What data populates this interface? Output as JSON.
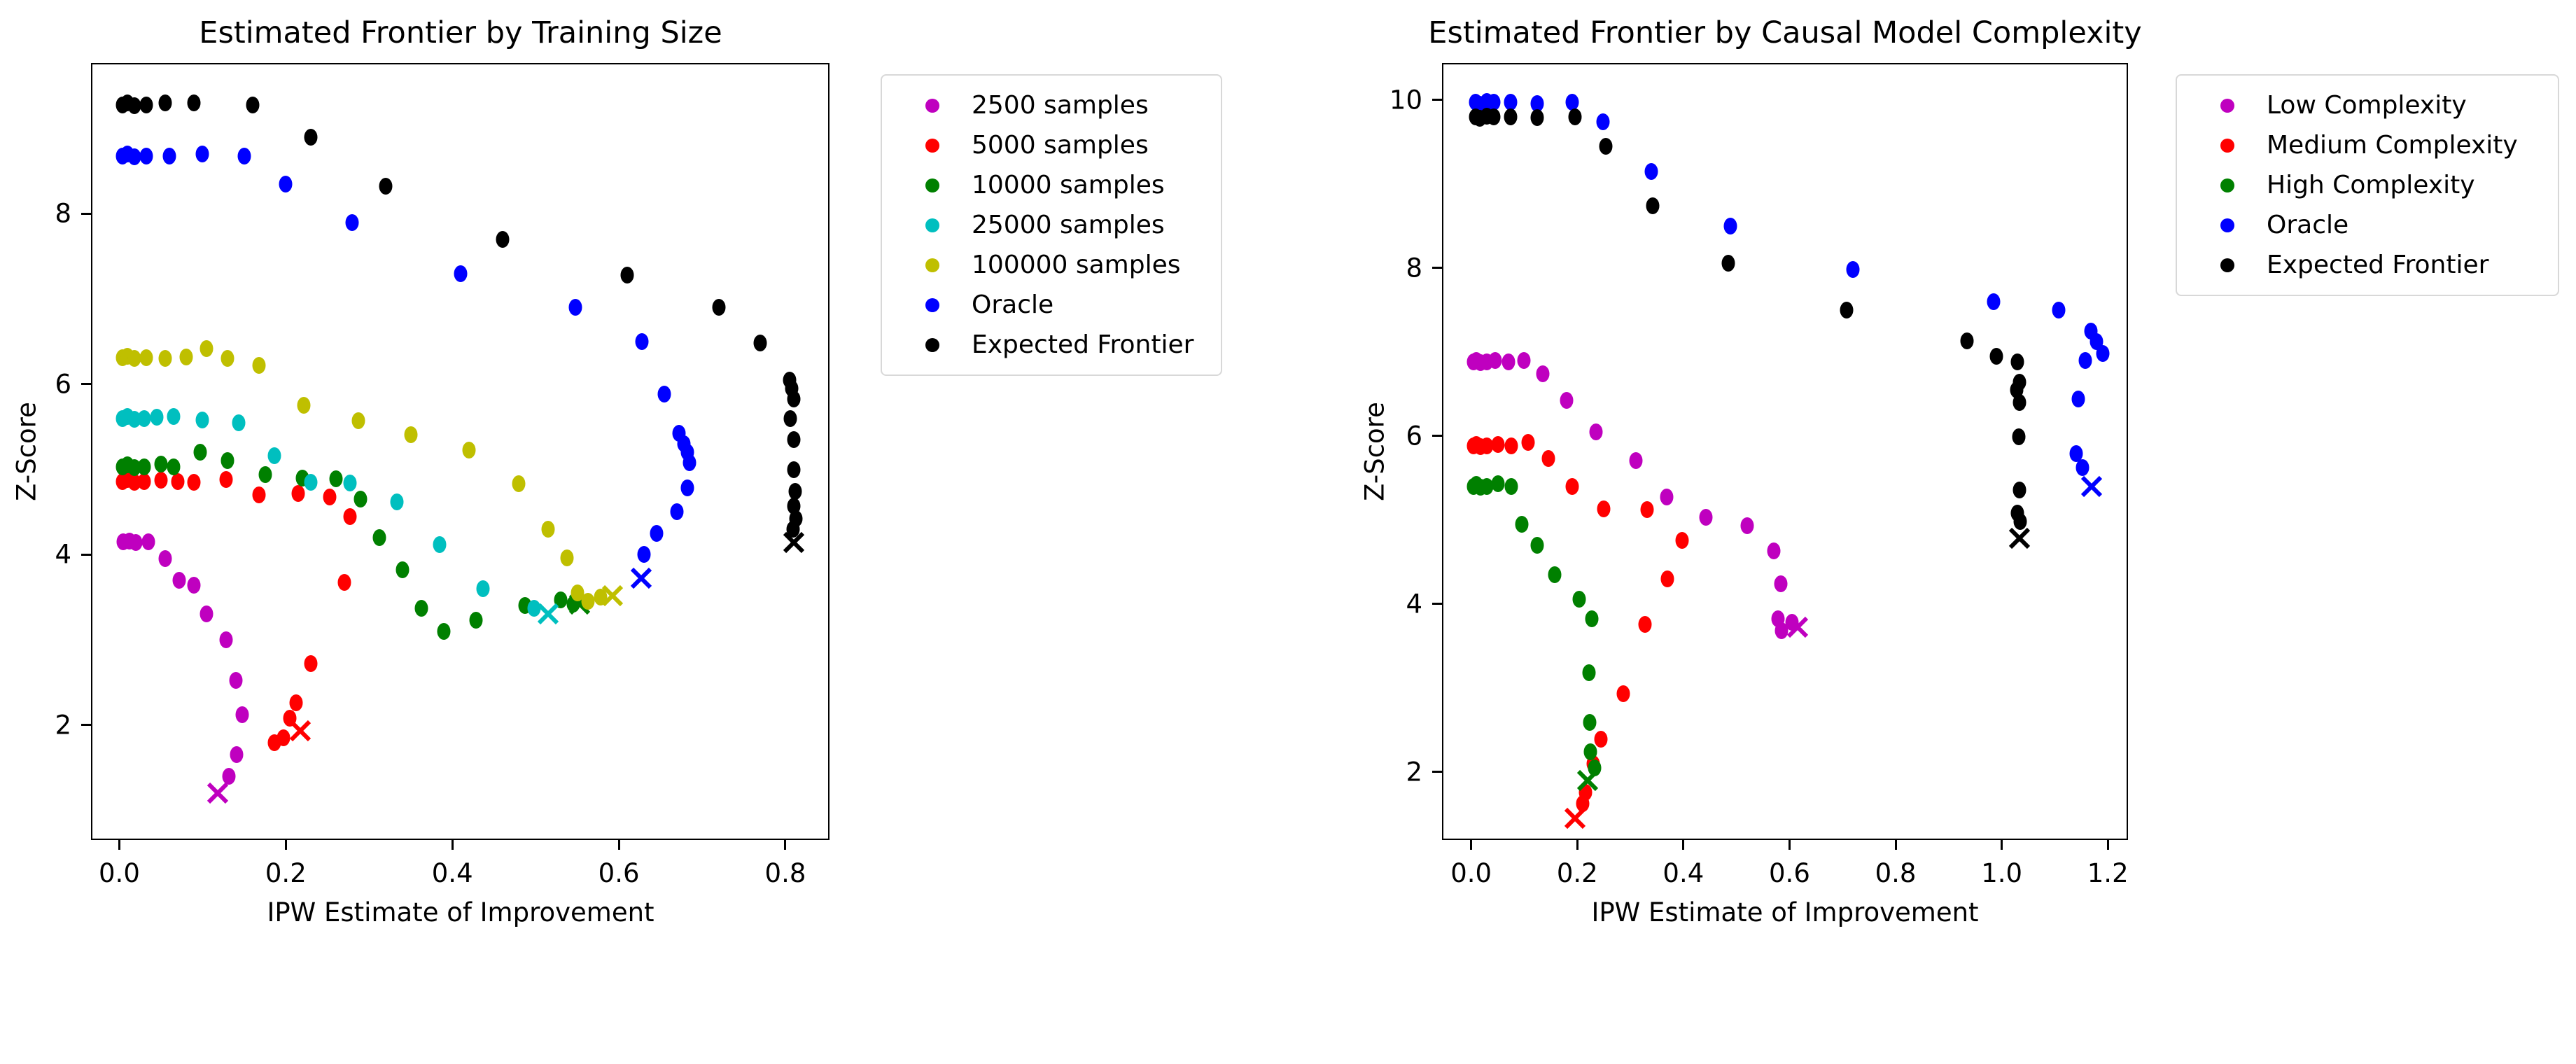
{
  "figure": {
    "background": "#ffffff",
    "spine_color": "#000000"
  },
  "chart_data": [
    {
      "type": "scatter",
      "title": "Estimated Frontier by Training Size",
      "xlabel": "IPW Estimate of Improvement",
      "ylabel": "Z-Score",
      "xlim": [
        -0.034,
        0.853
      ],
      "ylim": [
        0.65,
        9.77
      ],
      "grid": false,
      "legend_position": "outside upper right",
      "frontier_marker": "x",
      "xticks": [
        {
          "v": 0.0,
          "label": "0.0"
        },
        {
          "v": 0.2,
          "label": "0.2"
        },
        {
          "v": 0.4,
          "label": "0.4"
        },
        {
          "v": 0.6,
          "label": "0.6"
        },
        {
          "v": 0.8,
          "label": "0.8"
        }
      ],
      "yticks": [
        {
          "v": 2,
          "label": "2"
        },
        {
          "v": 4,
          "label": "4"
        },
        {
          "v": 6,
          "label": "6"
        },
        {
          "v": 8,
          "label": "8"
        }
      ],
      "series": [
        {
          "name": "2500 samples",
          "color": "#bf00bf",
          "points": [
            [
              0.005,
              4.15
            ],
            [
              0.012,
              4.16
            ],
            [
              0.02,
              4.14
            ],
            [
              0.035,
              4.15
            ],
            [
              0.055,
              3.95
            ],
            [
              0.072,
              3.7
            ],
            [
              0.09,
              3.64
            ],
            [
              0.105,
              3.3
            ],
            [
              0.128,
              3.0
            ],
            [
              0.14,
              2.52
            ],
            [
              0.148,
              2.12
            ],
            [
              0.141,
              1.65
            ],
            [
              0.132,
              1.4
            ]
          ],
          "frontier_point": [
            0.118,
            1.2
          ]
        },
        {
          "name": "5000 samples",
          "color": "#ff0000",
          "points": [
            [
              0.004,
              4.86
            ],
            [
              0.01,
              4.88
            ],
            [
              0.018,
              4.85
            ],
            [
              0.03,
              4.86
            ],
            [
              0.05,
              4.87
            ],
            [
              0.07,
              4.86
            ],
            [
              0.09,
              4.85
            ],
            [
              0.128,
              4.88
            ],
            [
              0.168,
              4.7
            ],
            [
              0.215,
              4.72
            ],
            [
              0.253,
              4.68
            ],
            [
              0.277,
              4.45
            ],
            [
              0.27,
              3.67
            ],
            [
              0.23,
              2.72
            ],
            [
              0.212,
              2.26
            ],
            [
              0.205,
              2.08
            ],
            [
              0.197,
              1.85
            ],
            [
              0.186,
              1.79
            ]
          ],
          "frontier_point": [
            0.217,
            1.93
          ]
        },
        {
          "name": "10000 samples",
          "color": "#008000",
          "points": [
            [
              0.004,
              5.03
            ],
            [
              0.01,
              5.05
            ],
            [
              0.018,
              5.02
            ],
            [
              0.03,
              5.03
            ],
            [
              0.05,
              5.06
            ],
            [
              0.065,
              5.03
            ],
            [
              0.097,
              5.2
            ],
            [
              0.13,
              5.1
            ],
            [
              0.175,
              4.94
            ],
            [
              0.22,
              4.9
            ],
            [
              0.26,
              4.89
            ],
            [
              0.29,
              4.65
            ],
            [
              0.312,
              4.2
            ],
            [
              0.34,
              3.82
            ],
            [
              0.363,
              3.37
            ],
            [
              0.39,
              3.1
            ],
            [
              0.428,
              3.23
            ],
            [
              0.487,
              3.4
            ],
            [
              0.53,
              3.47
            ],
            [
              0.545,
              3.42
            ]
          ],
          "frontier_point": [
            0.553,
            3.42
          ]
        },
        {
          "name": "25000 samples",
          "color": "#00bfbf",
          "points": [
            [
              0.004,
              5.6
            ],
            [
              0.01,
              5.62
            ],
            [
              0.018,
              5.59
            ],
            [
              0.03,
              5.6
            ],
            [
              0.045,
              5.61
            ],
            [
              0.065,
              5.62
            ],
            [
              0.1,
              5.58
            ],
            [
              0.143,
              5.55
            ],
            [
              0.186,
              5.16
            ],
            [
              0.23,
              4.85
            ],
            [
              0.277,
              4.84
            ],
            [
              0.333,
              4.62
            ],
            [
              0.385,
              4.12
            ],
            [
              0.437,
              3.6
            ],
            [
              0.498,
              3.37
            ]
          ],
          "frontier_point": [
            0.515,
            3.3
          ]
        },
        {
          "name": "100000 samples",
          "color": "#bfbf00",
          "points": [
            [
              0.004,
              6.31
            ],
            [
              0.01,
              6.33
            ],
            [
              0.018,
              6.3
            ],
            [
              0.032,
              6.31
            ],
            [
              0.055,
              6.3
            ],
            [
              0.08,
              6.32
            ],
            [
              0.105,
              6.42
            ],
            [
              0.13,
              6.3
            ],
            [
              0.168,
              6.22
            ],
            [
              0.222,
              5.75
            ],
            [
              0.287,
              5.57
            ],
            [
              0.35,
              5.41
            ],
            [
              0.42,
              5.23
            ],
            [
              0.48,
              4.83
            ],
            [
              0.515,
              4.3
            ],
            [
              0.538,
              3.96
            ],
            [
              0.55,
              3.55
            ],
            [
              0.563,
              3.45
            ],
            [
              0.578,
              3.5
            ]
          ],
          "frontier_point": [
            0.592,
            3.52
          ]
        },
        {
          "name": "Oracle",
          "color": "#0000ff",
          "points": [
            [
              0.004,
              8.68
            ],
            [
              0.01,
              8.7
            ],
            [
              0.018,
              8.67
            ],
            [
              0.032,
              8.68
            ],
            [
              0.06,
              8.68
            ],
            [
              0.1,
              8.7
            ],
            [
              0.15,
              8.68
            ],
            [
              0.2,
              8.35
            ],
            [
              0.28,
              7.9
            ],
            [
              0.41,
              7.3
            ],
            [
              0.548,
              6.9
            ],
            [
              0.628,
              6.5
            ],
            [
              0.655,
              5.88
            ],
            [
              0.672,
              5.42
            ],
            [
              0.678,
              5.3
            ],
            [
              0.682,
              5.2
            ],
            [
              0.685,
              5.08
            ],
            [
              0.682,
              4.78
            ],
            [
              0.67,
              4.5
            ],
            [
              0.645,
              4.25
            ],
            [
              0.63,
              4.0
            ]
          ],
          "frontier_point": [
            0.627,
            3.72
          ]
        },
        {
          "name": "Expected Frontier",
          "color": "#000000",
          "points": [
            [
              0.004,
              9.28
            ],
            [
              0.01,
              9.3
            ],
            [
              0.018,
              9.27
            ],
            [
              0.032,
              9.28
            ],
            [
              0.055,
              9.3
            ],
            [
              0.09,
              9.3
            ],
            [
              0.16,
              9.28
            ],
            [
              0.23,
              8.9
            ],
            [
              0.32,
              8.32
            ],
            [
              0.46,
              7.7
            ],
            [
              0.61,
              7.28
            ],
            [
              0.72,
              6.9
            ],
            [
              0.77,
              6.48
            ],
            [
              0.805,
              6.05
            ],
            [
              0.808,
              5.95
            ],
            [
              0.81,
              5.83
            ],
            [
              0.806,
              5.6
            ],
            [
              0.81,
              5.35
            ],
            [
              0.81,
              5.0
            ],
            [
              0.812,
              4.74
            ],
            [
              0.81,
              4.57
            ],
            [
              0.813,
              4.42
            ],
            [
              0.809,
              4.3
            ]
          ],
          "frontier_point": [
            0.81,
            4.14
          ]
        }
      ]
    },
    {
      "type": "scatter",
      "title": "Estimated Frontier by Causal Model Complexity",
      "xlabel": "IPW Estimate of Improvement",
      "ylabel": "Z-Score",
      "xlim": [
        -0.055,
        1.238
      ],
      "ylim": [
        1.19,
        10.44
      ],
      "grid": false,
      "legend_position": "outside upper right",
      "frontier_marker": "x",
      "xticks": [
        {
          "v": 0.0,
          "label": "0.0"
        },
        {
          "v": 0.2,
          "label": "0.2"
        },
        {
          "v": 0.4,
          "label": "0.4"
        },
        {
          "v": 0.6,
          "label": "0.6"
        },
        {
          "v": 0.8,
          "label": "0.8"
        },
        {
          "v": 1.0,
          "label": "1.0"
        },
        {
          "v": 1.2,
          "label": "1.2"
        }
      ],
      "yticks": [
        {
          "v": 2,
          "label": "2"
        },
        {
          "v": 4,
          "label": "4"
        },
        {
          "v": 6,
          "label": "6"
        },
        {
          "v": 8,
          "label": "8"
        },
        {
          "v": 10,
          "label": "10"
        }
      ],
      "series": [
        {
          "name": "Low Complexity",
          "color": "#bf00bf",
          "points": [
            [
              0.004,
              6.88
            ],
            [
              0.01,
              6.9
            ],
            [
              0.018,
              6.87
            ],
            [
              0.03,
              6.88
            ],
            [
              0.045,
              6.9
            ],
            [
              0.07,
              6.88
            ],
            [
              0.1,
              6.9
            ],
            [
              0.135,
              6.74
            ],
            [
              0.18,
              6.42
            ],
            [
              0.235,
              6.05
            ],
            [
              0.31,
              5.71
            ],
            [
              0.368,
              5.27
            ],
            [
              0.443,
              5.03
            ],
            [
              0.52,
              4.93
            ],
            [
              0.571,
              4.63
            ],
            [
              0.583,
              4.24
            ],
            [
              0.578,
              3.82
            ],
            [
              0.605,
              3.78
            ],
            [
              0.585,
              3.68
            ]
          ],
          "frontier_point": [
            0.615,
            3.72
          ]
        },
        {
          "name": "Medium Complexity",
          "color": "#ff0000",
          "points": [
            [
              0.004,
              5.88
            ],
            [
              0.01,
              5.9
            ],
            [
              0.018,
              5.87
            ],
            [
              0.03,
              5.88
            ],
            [
              0.05,
              5.9
            ],
            [
              0.075,
              5.88
            ],
            [
              0.107,
              5.92
            ],
            [
              0.145,
              5.73
            ],
            [
              0.19,
              5.4
            ],
            [
              0.25,
              5.13
            ],
            [
              0.332,
              5.12
            ],
            [
              0.397,
              4.76
            ],
            [
              0.37,
              4.3
            ],
            [
              0.328,
              3.76
            ],
            [
              0.287,
              2.93
            ],
            [
              0.245,
              2.39
            ],
            [
              0.23,
              2.1
            ],
            [
              0.216,
              1.76
            ],
            [
              0.21,
              1.62
            ]
          ],
          "frontier_point": [
            0.196,
            1.45
          ]
        },
        {
          "name": "High Complexity",
          "color": "#008000",
          "points": [
            [
              0.004,
              5.4
            ],
            [
              0.01,
              5.42
            ],
            [
              0.018,
              5.39
            ],
            [
              0.03,
              5.4
            ],
            [
              0.05,
              5.43
            ],
            [
              0.075,
              5.4
            ],
            [
              0.095,
              4.95
            ],
            [
              0.125,
              4.7
            ],
            [
              0.158,
              4.35
            ],
            [
              0.203,
              4.06
            ],
            [
              0.228,
              3.82
            ],
            [
              0.222,
              3.18
            ],
            [
              0.223,
              2.59
            ],
            [
              0.225,
              2.24
            ],
            [
              0.232,
              2.05
            ]
          ],
          "frontier_point": [
            0.22,
            1.9
          ]
        },
        {
          "name": "Oracle",
          "color": "#0000ff",
          "points": [
            [
              0.008,
              9.97
            ],
            [
              0.016,
              9.95
            ],
            [
              0.03,
              9.98
            ],
            [
              0.042,
              9.97
            ],
            [
              0.074,
              9.97
            ],
            [
              0.125,
              9.96
            ],
            [
              0.19,
              9.97
            ],
            [
              0.248,
              9.74
            ],
            [
              0.339,
              9.15
            ],
            [
              0.488,
              8.5
            ],
            [
              0.72,
              7.98
            ],
            [
              0.985,
              7.6
            ],
            [
              1.108,
              7.5
            ],
            [
              1.168,
              7.25
            ],
            [
              1.178,
              7.12
            ],
            [
              1.19,
              6.98
            ],
            [
              1.157,
              6.9
            ],
            [
              1.144,
              6.44
            ],
            [
              1.14,
              5.79
            ],
            [
              1.152,
              5.62
            ]
          ],
          "frontier_point": [
            1.17,
            5.4
          ]
        },
        {
          "name": "Expected Frontier",
          "color": "#000000",
          "points": [
            [
              0.008,
              9.8
            ],
            [
              0.016,
              9.78
            ],
            [
              0.03,
              9.81
            ],
            [
              0.042,
              9.8
            ],
            [
              0.074,
              9.8
            ],
            [
              0.125,
              9.79
            ],
            [
              0.196,
              9.8
            ],
            [
              0.254,
              9.45
            ],
            [
              0.342,
              8.74
            ],
            [
              0.485,
              8.06
            ],
            [
              0.707,
              7.5
            ],
            [
              0.934,
              7.13
            ],
            [
              0.99,
              6.95
            ],
            [
              1.03,
              6.88
            ],
            [
              1.033,
              6.64
            ],
            [
              1.028,
              6.55
            ],
            [
              1.034,
              6.4
            ],
            [
              1.032,
              5.99
            ],
            [
              1.034,
              5.36
            ],
            [
              1.03,
              5.08
            ],
            [
              1.035,
              4.98
            ]
          ],
          "frontier_point": [
            1.033,
            4.78
          ]
        }
      ]
    }
  ]
}
